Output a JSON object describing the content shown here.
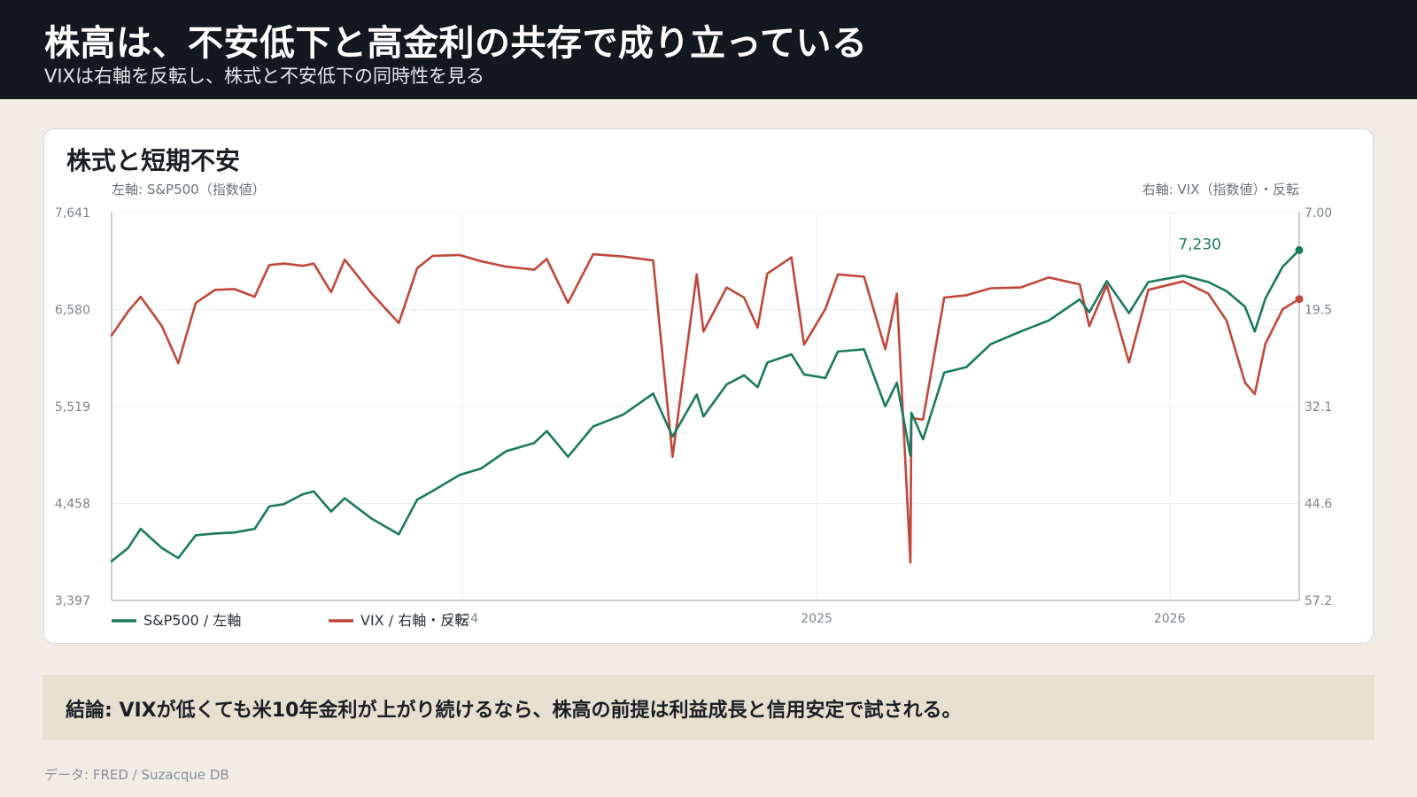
{
  "header": {
    "title": "株高は、不安低下と高金利の共存で成り立っている",
    "subtitle": "VIXは右軸を反転し、株式と不安低下の同時性を見る"
  },
  "card": {
    "title": "株式と短期不安"
  },
  "chart_data": {
    "type": "line",
    "left_axis_label": "左軸: S&P500（指数値）",
    "right_axis_label": "右軸: VIX（指数値）・反転",
    "left_ticks": [
      "7,641",
      "6,580",
      "5,519",
      "4,458",
      "3,397"
    ],
    "left_range": [
      3397,
      7641
    ],
    "right_ticks": [
      "7.00",
      "19.5",
      "32.1",
      "44.6",
      "57.2"
    ],
    "right_range": [
      7.0,
      57.2
    ],
    "right_axis_inverted": true,
    "x_ticks": [
      "2024",
      "2025",
      "2026"
    ],
    "x_range": [
      "2023-01-03",
      "2026-05-15"
    ],
    "grid": true,
    "legend_position": "bottom-left",
    "end_label": "7,230",
    "series": [
      {
        "name": "S&P500 / 左軸",
        "color": "#1a7a5c",
        "axis": "left",
        "points": [
          [
            "2023-01-03",
            3825
          ],
          [
            "2023-01-20",
            3970
          ],
          [
            "2023-02-02",
            4180
          ],
          [
            "2023-02-24",
            3970
          ],
          [
            "2023-03-13",
            3860
          ],
          [
            "2023-03-31",
            4110
          ],
          [
            "2023-04-20",
            4130
          ],
          [
            "2023-05-10",
            4140
          ],
          [
            "2023-05-31",
            4180
          ],
          [
            "2023-06-15",
            4425
          ],
          [
            "2023-06-30",
            4450
          ],
          [
            "2023-07-20",
            4560
          ],
          [
            "2023-07-31",
            4590
          ],
          [
            "2023-08-18",
            4370
          ],
          [
            "2023-09-01",
            4515
          ],
          [
            "2023-09-29",
            4290
          ],
          [
            "2023-10-27",
            4120
          ],
          [
            "2023-11-15",
            4500
          ],
          [
            "2023-12-01",
            4595
          ],
          [
            "2023-12-29",
            4770
          ],
          [
            "2024-01-20",
            4840
          ],
          [
            "2024-02-15",
            5030
          ],
          [
            "2024-03-15",
            5120
          ],
          [
            "2024-03-28",
            5250
          ],
          [
            "2024-04-19",
            4970
          ],
          [
            "2024-05-15",
            5300
          ],
          [
            "2024-06-15",
            5430
          ],
          [
            "2024-07-16",
            5660
          ],
          [
            "2024-08-05",
            5190
          ],
          [
            "2024-08-30",
            5650
          ],
          [
            "2024-09-06",
            5410
          ],
          [
            "2024-09-30",
            5760
          ],
          [
            "2024-10-18",
            5860
          ],
          [
            "2024-11-01",
            5730
          ],
          [
            "2024-11-11",
            6000
          ],
          [
            "2024-12-06",
            6090
          ],
          [
            "2024-12-19",
            5870
          ],
          [
            "2025-01-10",
            5830
          ],
          [
            "2025-01-23",
            6120
          ],
          [
            "2025-02-19",
            6145
          ],
          [
            "2025-03-13",
            5520
          ],
          [
            "2025-03-25",
            5780
          ],
          [
            "2025-04-08",
            4980
          ],
          [
            "2025-04-09",
            5450
          ],
          [
            "2025-04-21",
            5160
          ],
          [
            "2025-05-13",
            5890
          ],
          [
            "2025-06-05",
            5950
          ],
          [
            "2025-06-30",
            6200
          ],
          [
            "2025-07-31",
            6340
          ],
          [
            "2025-08-29",
            6460
          ],
          [
            "2025-09-30",
            6690
          ],
          [
            "2025-10-10",
            6550
          ],
          [
            "2025-10-28",
            6890
          ],
          [
            "2025-11-20",
            6540
          ],
          [
            "2025-12-10",
            6880
          ],
          [
            "2026-01-15",
            6950
          ],
          [
            "2026-02-10",
            6880
          ],
          [
            "2026-03-01",
            6780
          ],
          [
            "2026-03-20",
            6610
          ],
          [
            "2026-03-30",
            6340
          ],
          [
            "2026-04-10",
            6700
          ],
          [
            "2026-04-28",
            7050
          ],
          [
            "2026-05-15",
            7230
          ]
        ]
      },
      {
        "name": "VIX / 右軸・反転",
        "color": "#c0473a",
        "axis": "right",
        "points": [
          [
            "2023-01-03",
            22.9
          ],
          [
            "2023-01-20",
            19.8
          ],
          [
            "2023-02-02",
            17.9
          ],
          [
            "2023-02-24",
            21.7
          ],
          [
            "2023-03-13",
            26.5
          ],
          [
            "2023-03-31",
            18.7
          ],
          [
            "2023-04-20",
            17.0
          ],
          [
            "2023-05-10",
            16.9
          ],
          [
            "2023-05-31",
            17.9
          ],
          [
            "2023-06-15",
            13.8
          ],
          [
            "2023-06-30",
            13.6
          ],
          [
            "2023-07-20",
            13.9
          ],
          [
            "2023-07-31",
            13.6
          ],
          [
            "2023-08-18",
            17.3
          ],
          [
            "2023-09-01",
            13.1
          ],
          [
            "2023-09-29",
            17.5
          ],
          [
            "2023-10-27",
            21.3
          ],
          [
            "2023-11-15",
            14.2
          ],
          [
            "2023-12-01",
            12.6
          ],
          [
            "2023-12-29",
            12.5
          ],
          [
            "2024-01-20",
            13.3
          ],
          [
            "2024-02-15",
            14.0
          ],
          [
            "2024-03-15",
            14.4
          ],
          [
            "2024-03-28",
            13.0
          ],
          [
            "2024-04-19",
            18.7
          ],
          [
            "2024-05-15",
            12.4
          ],
          [
            "2024-06-15",
            12.7
          ],
          [
            "2024-07-16",
            13.2
          ],
          [
            "2024-08-05",
            38.6
          ],
          [
            "2024-08-30",
            15.0
          ],
          [
            "2024-09-06",
            22.4
          ],
          [
            "2024-09-30",
            16.7
          ],
          [
            "2024-10-18",
            18.0
          ],
          [
            "2024-11-01",
            21.9
          ],
          [
            "2024-11-11",
            14.9
          ],
          [
            "2024-12-06",
            12.8
          ],
          [
            "2024-12-19",
            24.1
          ],
          [
            "2025-01-10",
            19.5
          ],
          [
            "2025-01-23",
            15.0
          ],
          [
            "2025-02-19",
            15.3
          ],
          [
            "2025-03-13",
            24.7
          ],
          [
            "2025-03-25",
            17.5
          ],
          [
            "2025-04-08",
            52.3
          ],
          [
            "2025-04-09",
            33.6
          ],
          [
            "2025-04-21",
            33.8
          ],
          [
            "2025-05-13",
            18.0
          ],
          [
            "2025-06-05",
            17.7
          ],
          [
            "2025-06-30",
            16.8
          ],
          [
            "2025-07-31",
            16.7
          ],
          [
            "2025-08-29",
            15.4
          ],
          [
            "2025-09-30",
            16.3
          ],
          [
            "2025-10-10",
            21.7
          ],
          [
            "2025-10-28",
            16.4
          ],
          [
            "2025-11-20",
            26.4
          ],
          [
            "2025-12-10",
            17.0
          ],
          [
            "2026-01-15",
            15.9
          ],
          [
            "2026-02-10",
            17.5
          ],
          [
            "2026-03-01",
            21.0
          ],
          [
            "2026-03-20",
            29.0
          ],
          [
            "2026-03-30",
            30.5
          ],
          [
            "2026-04-10",
            24.0
          ],
          [
            "2026-04-28",
            19.5
          ],
          [
            "2026-05-15",
            18.2
          ]
        ]
      }
    ]
  },
  "conclusion": "結論: VIXが低くても米10年金利が上がり続けるなら、株高の前提は利益成長と信用安定で試される。",
  "footer": "データ: FRED / Suzacque DB"
}
